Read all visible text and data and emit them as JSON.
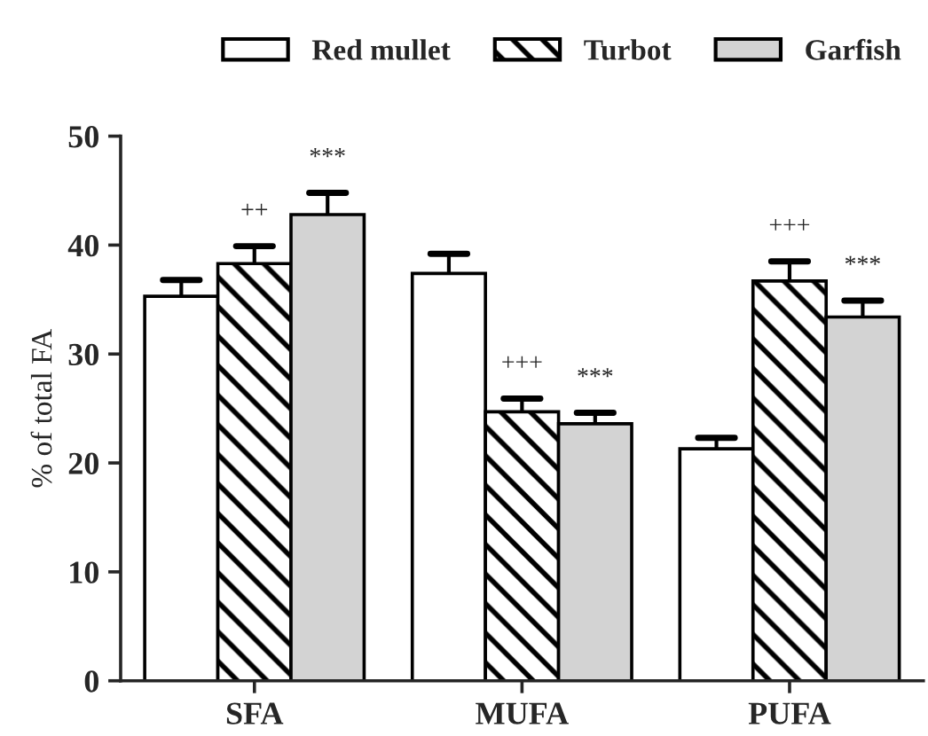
{
  "chart_data": {
    "type": "bar",
    "ylabel": "% of total FA",
    "categories": [
      "SFA",
      "MUFA",
      "PUFA"
    ],
    "series": [
      {
        "name": "Red mullet",
        "color": "#ffffff",
        "values": [
          35.3,
          37.4,
          21.3
        ],
        "errors": [
          [
            35.3,
            36.8
          ],
          [
            37.4,
            39.2
          ],
          [
            21.3,
            22.3
          ]
        ]
      },
      {
        "name": "Turbot",
        "color": "#000000",
        "values": [
          38.3,
          24.7,
          36.7
        ],
        "errors": [
          [
            38.3,
            39.9
          ],
          [
            24.7,
            25.9
          ],
          [
            36.7,
            38.5
          ]
        ]
      },
      {
        "name": "Garfish",
        "color": "#d3d3d3",
        "values": [
          42.8,
          23.6,
          33.4
        ],
        "errors": [
          [
            42.8,
            44.8
          ],
          [
            23.6,
            24.6
          ],
          [
            33.4,
            34.9
          ]
        ]
      }
    ],
    "ylim": [
      0,
      50
    ],
    "yticks": [
      0,
      10,
      20,
      30,
      40,
      50
    ],
    "grid": false,
    "legend": "top",
    "annotations": [
      "++",
      "***",
      "+++",
      "***",
      "+++",
      "***"
    ]
  }
}
